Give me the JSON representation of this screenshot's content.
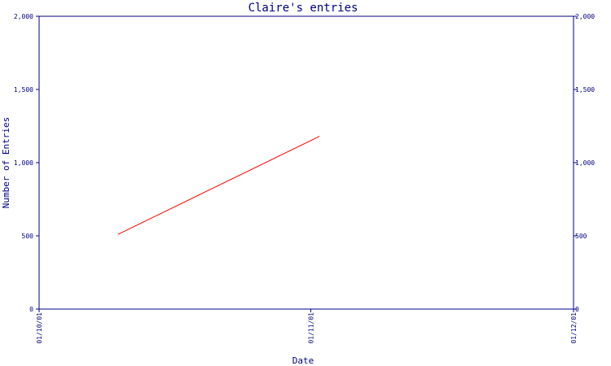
{
  "chart_data": {
    "type": "line",
    "title": "Claire's entries",
    "xlabel": "Date",
    "ylabel": "Number of Entries",
    "x_ticks": [
      "01/10/01",
      "01/11/01",
      "01/12/01"
    ],
    "y_ticks": [
      "0",
      "500",
      "1,000",
      "1,500",
      "2,000"
    ],
    "ylim": [
      0,
      2000
    ],
    "xlim": [
      "2001-10-01",
      "2001-12-01"
    ],
    "right_axis": true,
    "grid": false,
    "series": [
      {
        "color": "#ff0000",
        "points": [
          {
            "x": "2001-10-10",
            "y": 510
          },
          {
            "x": "2001-11-02",
            "y": 1180
          }
        ]
      }
    ],
    "colors": {
      "axis": "#000080",
      "text": "#000080",
      "line": "#ff0000"
    }
  }
}
